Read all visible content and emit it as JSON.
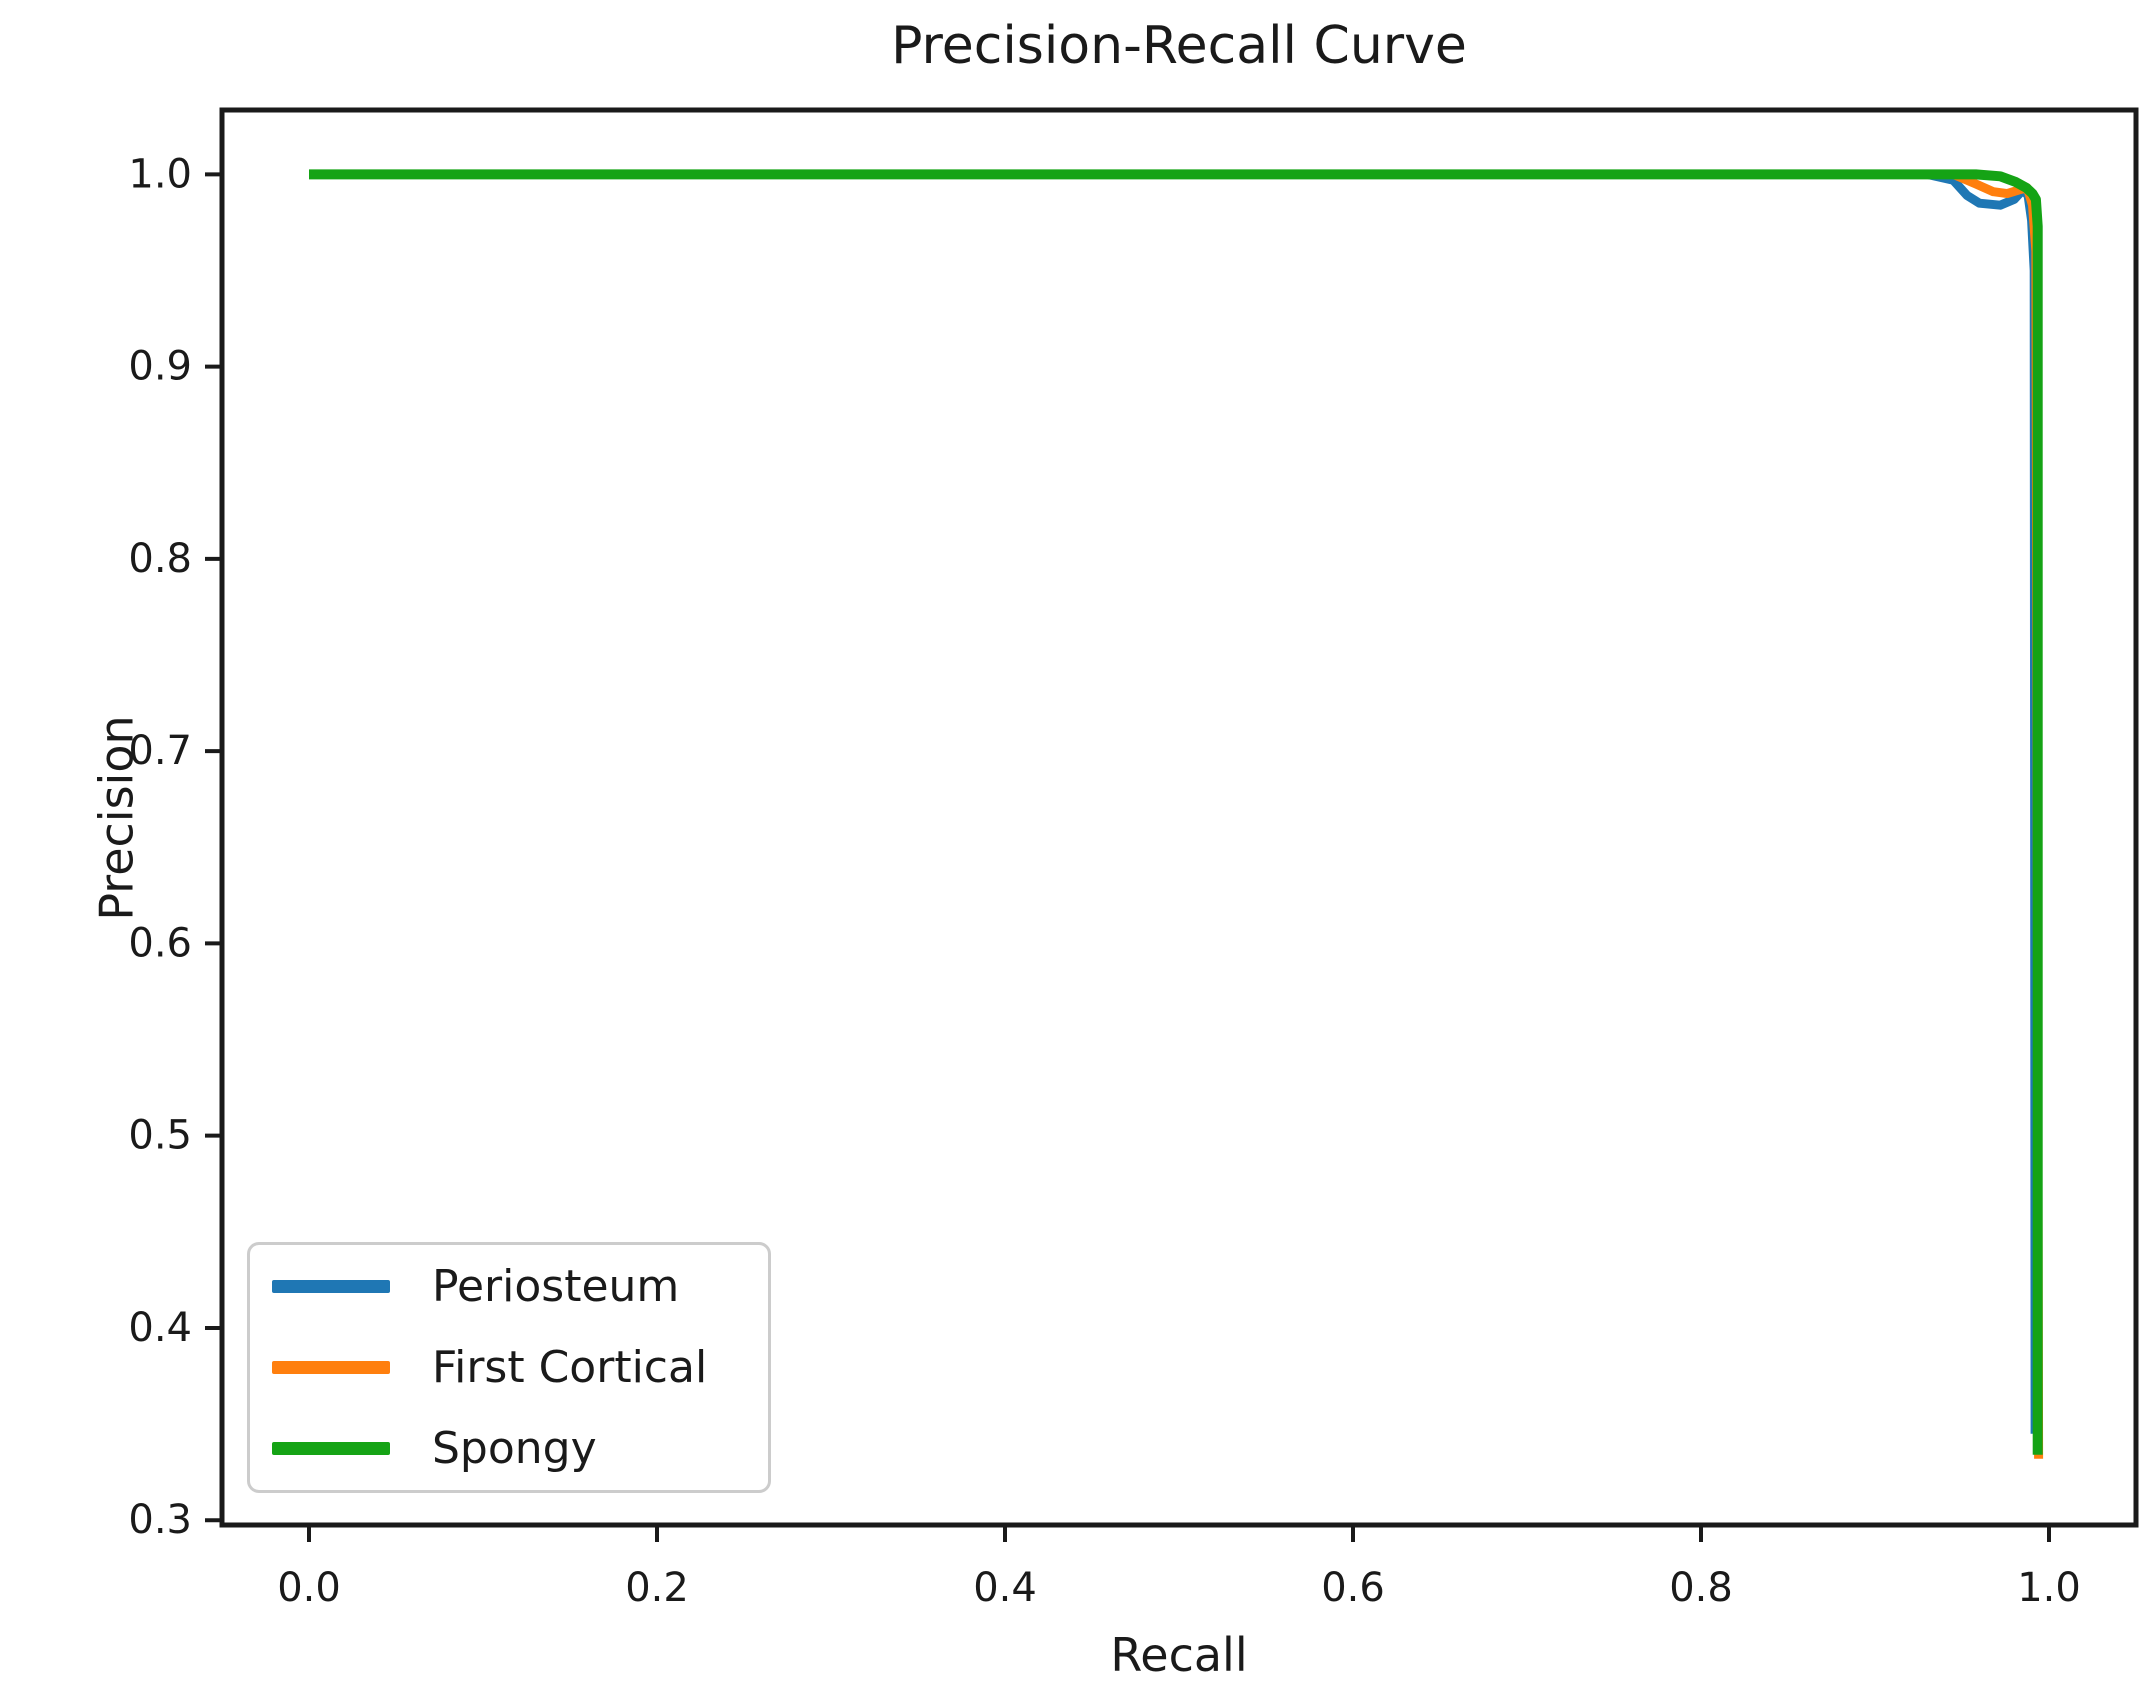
{
  "figure": {
    "background": "#ffffff",
    "text_color": "#1a1a1a",
    "spine_color": "#1a1a1a",
    "legend_border_color": "#cccccc"
  },
  "chart_data": {
    "type": "line",
    "title": "Precision-Recall Curve",
    "xlabel": "Recall",
    "ylabel": "Precision",
    "xlim": [
      -0.05,
      1.05
    ],
    "ylim": [
      0.2975,
      1.0335
    ],
    "x_ticks": [
      0.0,
      0.2,
      0.4,
      0.6,
      0.8,
      1.0
    ],
    "x_tick_labels": [
      "0.0",
      "0.2",
      "0.4",
      "0.6",
      "0.8",
      "1.0"
    ],
    "y_ticks": [
      0.3,
      0.4,
      0.5,
      0.6,
      0.7,
      0.8,
      0.9,
      1.0
    ],
    "y_tick_labels": [
      "0.3",
      "0.4",
      "0.5",
      "0.6",
      "0.7",
      "0.8",
      "0.9",
      "1.0"
    ],
    "grid": false,
    "legend_position": "lower-left",
    "series": [
      {
        "name": "Periosteum",
        "color": "#1f77b4",
        "line_width": 9,
        "points": [
          [
            0.0,
            1.0
          ],
          [
            0.2,
            1.0
          ],
          [
            0.4,
            1.0
          ],
          [
            0.6,
            1.0
          ],
          [
            0.8,
            1.0
          ],
          [
            0.93,
            1.0
          ],
          [
            0.945,
            0.997
          ],
          [
            0.953,
            0.989
          ],
          [
            0.96,
            0.985
          ],
          [
            0.972,
            0.984
          ],
          [
            0.98,
            0.987
          ],
          [
            0.985,
            0.992
          ],
          [
            0.988,
            0.989
          ],
          [
            0.99,
            0.976
          ],
          [
            0.9915,
            0.95
          ],
          [
            0.992,
            0.345
          ]
        ]
      },
      {
        "name": "First Cortical",
        "color": "#ff7f0e",
        "line_width": 9,
        "points": [
          [
            0.0,
            1.0
          ],
          [
            0.2,
            1.0
          ],
          [
            0.4,
            1.0
          ],
          [
            0.6,
            1.0
          ],
          [
            0.8,
            1.0
          ],
          [
            0.945,
            1.0
          ],
          [
            0.958,
            0.995
          ],
          [
            0.968,
            0.991
          ],
          [
            0.976,
            0.99
          ],
          [
            0.983,
            0.992
          ],
          [
            0.9875,
            0.993
          ],
          [
            0.9905,
            0.984
          ],
          [
            0.9925,
            0.96
          ],
          [
            0.994,
            0.332
          ]
        ]
      },
      {
        "name": "Spongy",
        "color": "#15a315",
        "line_width": 10,
        "points": [
          [
            0.0,
            1.0
          ],
          [
            0.2,
            1.0
          ],
          [
            0.4,
            1.0
          ],
          [
            0.6,
            1.0
          ],
          [
            0.8,
            1.0
          ],
          [
            0.958,
            1.0
          ],
          [
            0.972,
            0.999
          ],
          [
            0.981,
            0.996
          ],
          [
            0.987,
            0.993
          ],
          [
            0.9905,
            0.99
          ],
          [
            0.9925,
            0.987
          ],
          [
            0.9935,
            0.973
          ],
          [
            0.9935,
            0.334
          ]
        ]
      }
    ]
  }
}
